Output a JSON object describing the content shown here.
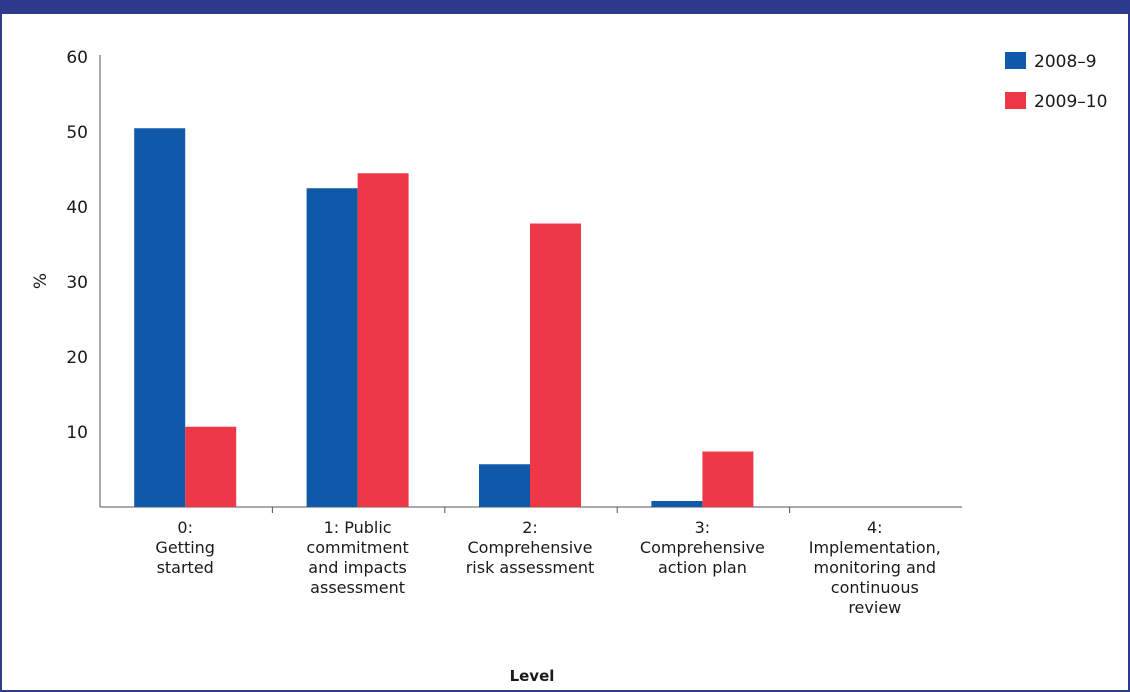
{
  "chart_data": {
    "type": "bar",
    "title": "",
    "xlabel": "Level",
    "ylabel": "%",
    "ylim": [
      0,
      60
    ],
    "yticks": [
      10,
      20,
      30,
      40,
      50,
      60
    ],
    "grid": false,
    "legend_position": "top-right",
    "categories": [
      [
        "0:",
        "Getting",
        "started"
      ],
      [
        "1: Public",
        "commitment",
        "and impacts",
        "assessment"
      ],
      [
        "2:",
        "Comprehensive",
        "risk assessment"
      ],
      [
        "3:",
        "Comprehensive",
        "action plan"
      ],
      [
        "4:",
        "Implementation,",
        "monitoring and",
        "continuous",
        "review"
      ]
    ],
    "series": [
      {
        "name": "2008–9",
        "color": "#0f5aa8",
        "values": [
          50.5,
          42.5,
          5.7,
          0.8,
          0
        ]
      },
      {
        "name": "2009–10",
        "color": "#ee3848",
        "values": [
          10.7,
          44.5,
          37.8,
          7.4,
          0
        ]
      }
    ]
  }
}
